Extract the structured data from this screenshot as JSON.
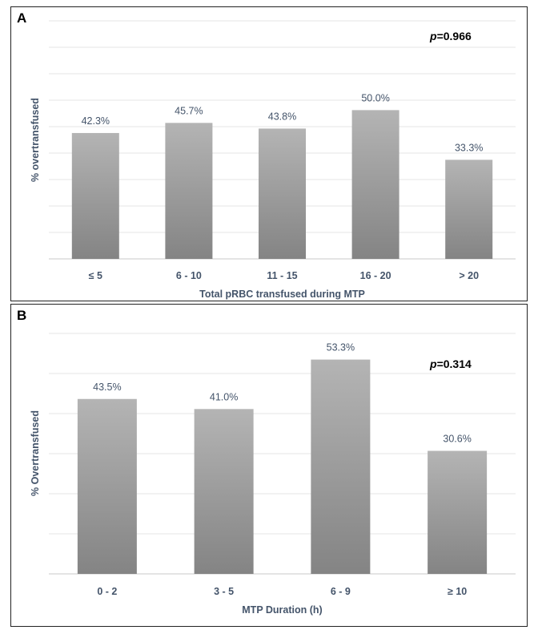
{
  "panels": [
    {
      "letter": "A",
      "pvalue_label": "p",
      "pvalue_rest": "=0.966"
    },
    {
      "letter": "B",
      "pvalue_label": "p",
      "pvalue_rest": "=0.314"
    }
  ],
  "chart_data": [
    {
      "type": "bar",
      "title": "",
      "categories": [
        "≤ 5",
        "6 - 10",
        "11 - 15",
        "16 - 20",
        "> 20"
      ],
      "values": [
        42.3,
        45.7,
        43.8,
        50.0,
        33.3
      ],
      "data_labels": [
        "42.3%",
        "45.7%",
        "43.8%",
        "50.0%",
        "33.3%"
      ],
      "xlabel": "Total pRBC transfused during MTP",
      "ylabel": "% overtransfused",
      "ylim": [
        0,
        80
      ],
      "grid": true,
      "annotation": "p=0.966",
      "bar_color_top": "#b4b4b4",
      "bar_color_bottom": "#848484"
    },
    {
      "type": "bar",
      "title": "",
      "categories": [
        "0 - 2",
        "3 - 5",
        "6 - 9",
        "≥ 10"
      ],
      "values": [
        43.5,
        41.0,
        53.3,
        30.6
      ],
      "data_labels": [
        "43.5%",
        "41.0%",
        "53.3%",
        "30.6%"
      ],
      "xlabel": "MTP Duration (h)",
      "ylabel": "% Overtransfused",
      "ylim": [
        0,
        60
      ],
      "grid": true,
      "annotation": "p=0.314",
      "bar_color_top": "#b4b4b4",
      "bar_color_bottom": "#848484"
    }
  ]
}
